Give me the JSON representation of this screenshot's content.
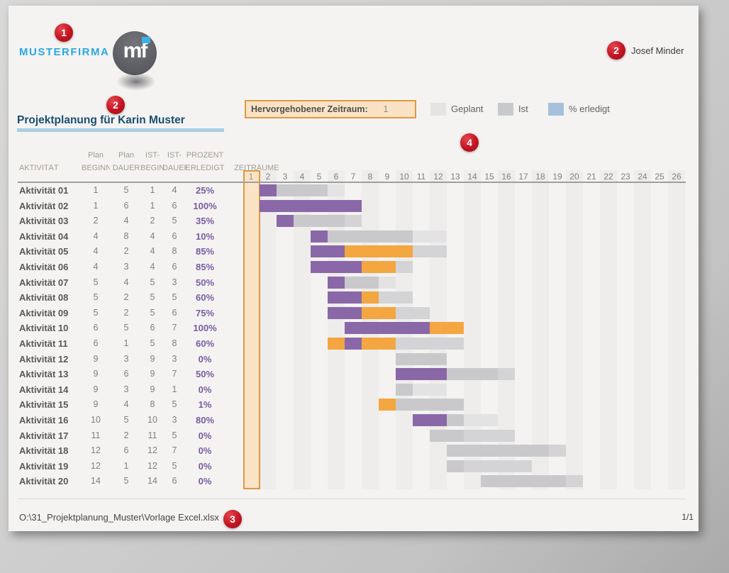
{
  "brand": {
    "company": "MUSTERFIRMA",
    "monogram": "mf"
  },
  "header": {
    "author": "Josef Minder",
    "title": "Projektplanung für Karin Muster"
  },
  "annotations": {
    "badge_logo": "1",
    "badge_title": "2",
    "badge_author": "2",
    "badge_footer": "3",
    "badge_chart": "4"
  },
  "highlight": {
    "label": "Hervorgehobener Zeitraum:",
    "value": "1"
  },
  "legend": {
    "items": [
      {
        "label": "Geplant",
        "color": "#e4e4e4"
      },
      {
        "label": "Ist",
        "color": "#c7cacc"
      },
      {
        "label": "% erledigt",
        "color": "#a6c1dc"
      }
    ]
  },
  "table_headers": {
    "aktivitaet": "AKTIVITÄT",
    "plan_beginn_1": "Plan",
    "plan_beginn_2": "BEGINN",
    "plan_dauer_1": "Plan",
    "plan_dauer_2": "DAUER",
    "ist_beginn_1": "IST-",
    "ist_beginn_2": "BEGINN",
    "ist_dauer_1": "IST-",
    "ist_dauer_2": "DAUER",
    "prozent_1": "PROZENT",
    "prozent_2": "ERLEDIGT",
    "zeitraeume": "ZEITRÄUME"
  },
  "footer": {
    "path": "O:\\31_Projektplanung_Muster\\Vorlage Excel.xlsx",
    "page_number": "1/1"
  },
  "chart_data": {
    "type": "bar",
    "variant": "gantt",
    "title": "Projektplanung für Karin Muster",
    "x_axis": {
      "label": "ZEITRÄUME",
      "ticks": [
        1,
        2,
        3,
        4,
        5,
        6,
        7,
        8,
        9,
        10,
        11,
        12,
        13,
        14,
        15,
        16,
        17,
        18,
        19,
        20,
        21,
        22,
        23,
        24,
        25,
        26
      ],
      "highlighted_period": 1
    },
    "legend": [
      "Geplant",
      "Ist",
      "% erledigt"
    ],
    "colors": {
      "erledigt": "#8a68a8",
      "erledigt_ueber_plan": "#f4a641",
      "ist": "#c9c9cb",
      "ist_ueber_plan": "#d4d4d6",
      "geplant": "#e3e3e4",
      "highlight_column": "#fbe3c6"
    },
    "activities": [
      {
        "name": "Aktivität 01",
        "plan_beginn": 1,
        "plan_dauer": 5,
        "ist_beginn": 1,
        "ist_dauer": 4,
        "prozent_erledigt": "25%",
        "segments": [
          [
            2,
            2,
            "erledigt"
          ],
          [
            3,
            5,
            "ist"
          ],
          [
            6,
            6,
            "geplant"
          ]
        ]
      },
      {
        "name": "Aktivität 02",
        "plan_beginn": 1,
        "plan_dauer": 6,
        "ist_beginn": 1,
        "ist_dauer": 6,
        "prozent_erledigt": "100%",
        "segments": [
          [
            2,
            7,
            "erledigt"
          ]
        ]
      },
      {
        "name": "Aktivität 03",
        "plan_beginn": 2,
        "plan_dauer": 4,
        "ist_beginn": 2,
        "ist_dauer": 5,
        "prozent_erledigt": "35%",
        "segments": [
          [
            3,
            3,
            "erledigt"
          ],
          [
            4,
            6,
            "ist"
          ],
          [
            7,
            7,
            "ist_ueber_plan"
          ]
        ]
      },
      {
        "name": "Aktivität 04",
        "plan_beginn": 4,
        "plan_dauer": 8,
        "ist_beginn": 4,
        "ist_dauer": 6,
        "prozent_erledigt": "10%",
        "segments": [
          [
            5,
            5,
            "erledigt"
          ],
          [
            6,
            10,
            "ist"
          ],
          [
            11,
            12,
            "geplant"
          ]
        ]
      },
      {
        "name": "Aktivität 05",
        "plan_beginn": 4,
        "plan_dauer": 2,
        "ist_beginn": 4,
        "ist_dauer": 8,
        "prozent_erledigt": "85%",
        "segments": [
          [
            5,
            6,
            "erledigt"
          ],
          [
            7,
            10,
            "erledigt_ueber_plan"
          ],
          [
            11,
            12,
            "ist_ueber_plan"
          ]
        ]
      },
      {
        "name": "Aktivität 06",
        "plan_beginn": 4,
        "plan_dauer": 3,
        "ist_beginn": 4,
        "ist_dauer": 6,
        "prozent_erledigt": "85%",
        "segments": [
          [
            5,
            7,
            "erledigt"
          ],
          [
            8,
            9,
            "erledigt_ueber_plan"
          ],
          [
            10,
            10,
            "ist_ueber_plan"
          ]
        ]
      },
      {
        "name": "Aktivität 07",
        "plan_beginn": 5,
        "plan_dauer": 4,
        "ist_beginn": 5,
        "ist_dauer": 3,
        "prozent_erledigt": "50%",
        "segments": [
          [
            6,
            6,
            "erledigt"
          ],
          [
            7,
            8,
            "ist"
          ],
          [
            9,
            9,
            "geplant"
          ]
        ]
      },
      {
        "name": "Aktivität 08",
        "plan_beginn": 5,
        "plan_dauer": 2,
        "ist_beginn": 5,
        "ist_dauer": 5,
        "prozent_erledigt": "60%",
        "segments": [
          [
            6,
            7,
            "erledigt"
          ],
          [
            8,
            8,
            "erledigt_ueber_plan"
          ],
          [
            9,
            10,
            "ist_ueber_plan"
          ]
        ]
      },
      {
        "name": "Aktivität 09",
        "plan_beginn": 5,
        "plan_dauer": 2,
        "ist_beginn": 5,
        "ist_dauer": 6,
        "prozent_erledigt": "75%",
        "segments": [
          [
            6,
            7,
            "erledigt"
          ],
          [
            8,
            9,
            "erledigt_ueber_plan"
          ],
          [
            10,
            11,
            "ist_ueber_plan"
          ]
        ]
      },
      {
        "name": "Aktivität 10",
        "plan_beginn": 6,
        "plan_dauer": 5,
        "ist_beginn": 6,
        "ist_dauer": 7,
        "prozent_erledigt": "100%",
        "segments": [
          [
            7,
            11,
            "erledigt"
          ],
          [
            12,
            13,
            "erledigt_ueber_plan"
          ]
        ]
      },
      {
        "name": "Aktivität 11",
        "plan_beginn": 6,
        "plan_dauer": 1,
        "ist_beginn": 5,
        "ist_dauer": 8,
        "prozent_erledigt": "60%",
        "segments": [
          [
            6,
            6,
            "erledigt_ueber_plan"
          ],
          [
            7,
            7,
            "erledigt"
          ],
          [
            8,
            9,
            "erledigt_ueber_plan"
          ],
          [
            10,
            13,
            "ist_ueber_plan"
          ]
        ]
      },
      {
        "name": "Aktivität 12",
        "plan_beginn": 9,
        "plan_dauer": 3,
        "ist_beginn": 9,
        "ist_dauer": 3,
        "prozent_erledigt": "0%",
        "segments": [
          [
            10,
            12,
            "ist"
          ]
        ]
      },
      {
        "name": "Aktivität 13",
        "plan_beginn": 9,
        "plan_dauer": 6,
        "ist_beginn": 9,
        "ist_dauer": 7,
        "prozent_erledigt": "50%",
        "segments": [
          [
            10,
            12,
            "erledigt"
          ],
          [
            13,
            15,
            "ist"
          ],
          [
            16,
            16,
            "ist_ueber_plan"
          ]
        ]
      },
      {
        "name": "Aktivität 14",
        "plan_beginn": 9,
        "plan_dauer": 3,
        "ist_beginn": 9,
        "ist_dauer": 1,
        "prozent_erledigt": "0%",
        "segments": [
          [
            10,
            10,
            "ist"
          ],
          [
            11,
            12,
            "geplant"
          ]
        ]
      },
      {
        "name": "Aktivität 15",
        "plan_beginn": 9,
        "plan_dauer": 4,
        "ist_beginn": 8,
        "ist_dauer": 5,
        "prozent_erledigt": "1%",
        "segments": [
          [
            9,
            9,
            "erledigt_ueber_plan"
          ],
          [
            10,
            13,
            "ist"
          ]
        ]
      },
      {
        "name": "Aktivität 16",
        "plan_beginn": 10,
        "plan_dauer": 5,
        "ist_beginn": 10,
        "ist_dauer": 3,
        "prozent_erledigt": "80%",
        "segments": [
          [
            11,
            12,
            "erledigt"
          ],
          [
            13,
            13,
            "ist"
          ],
          [
            14,
            15,
            "geplant"
          ]
        ]
      },
      {
        "name": "Aktivität 17",
        "plan_beginn": 11,
        "plan_dauer": 2,
        "ist_beginn": 11,
        "ist_dauer": 5,
        "prozent_erledigt": "0%",
        "segments": [
          [
            12,
            13,
            "ist"
          ],
          [
            14,
            16,
            "ist_ueber_plan"
          ]
        ]
      },
      {
        "name": "Aktivität 18",
        "plan_beginn": 12,
        "plan_dauer": 6,
        "ist_beginn": 12,
        "ist_dauer": 7,
        "prozent_erledigt": "0%",
        "segments": [
          [
            13,
            18,
            "ist"
          ],
          [
            19,
            19,
            "ist_ueber_plan"
          ]
        ]
      },
      {
        "name": "Aktivität 19",
        "plan_beginn": 12,
        "plan_dauer": 1,
        "ist_beginn": 12,
        "ist_dauer": 5,
        "prozent_erledigt": "0%",
        "segments": [
          [
            13,
            13,
            "ist"
          ],
          [
            14,
            17,
            "ist_ueber_plan"
          ]
        ]
      },
      {
        "name": "Aktivität 20",
        "plan_beginn": 14,
        "plan_dauer": 5,
        "ist_beginn": 14,
        "ist_dauer": 6,
        "prozent_erledigt": "0%",
        "segments": [
          [
            15,
            19,
            "ist"
          ],
          [
            20,
            20,
            "ist_ueber_plan"
          ]
        ]
      }
    ]
  }
}
